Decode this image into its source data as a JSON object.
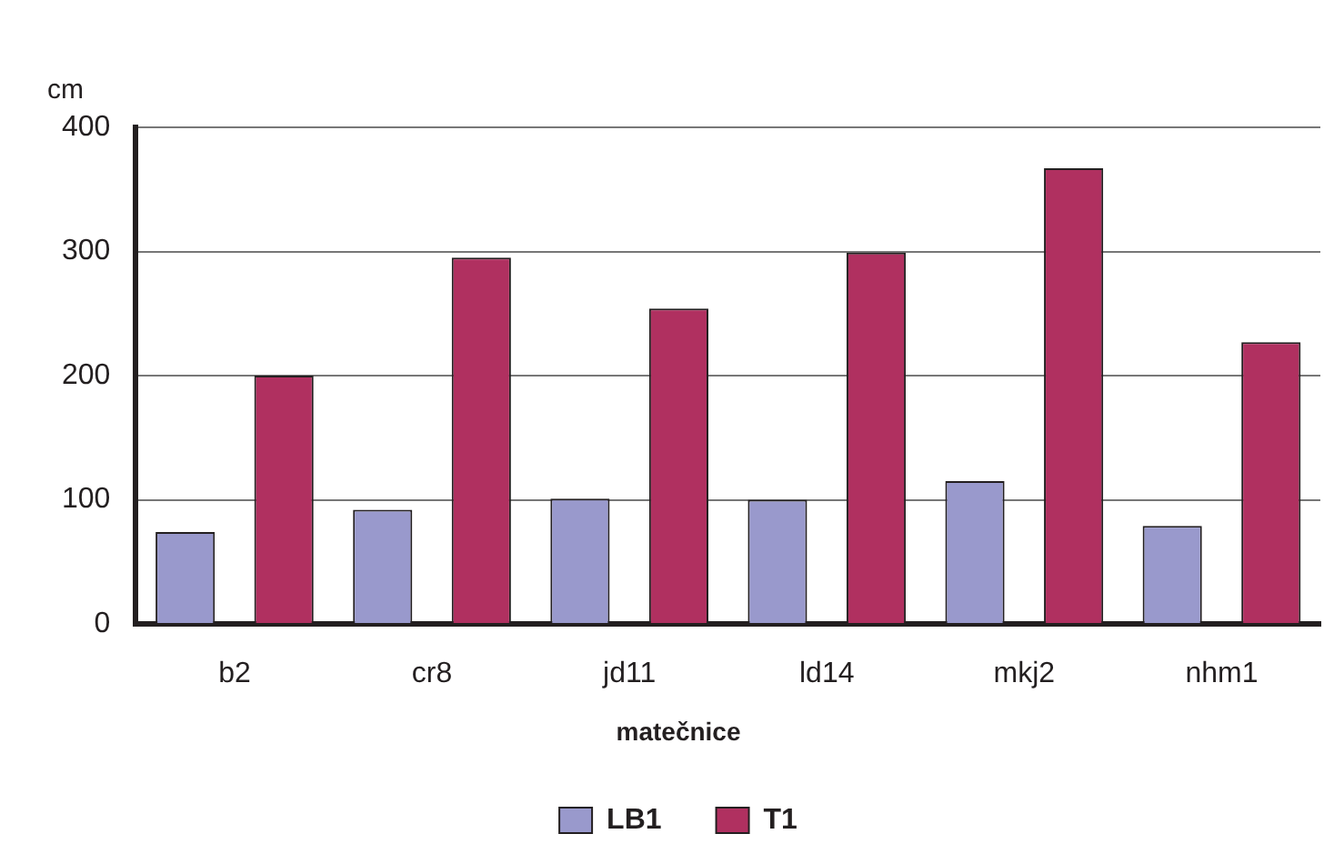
{
  "chart_data": {
    "type": "bar",
    "ylabel": "cm",
    "legend_title": "matečnice",
    "categories": [
      "b2",
      "cr8",
      "jd11",
      "ld14",
      "mkj2",
      "nhm1"
    ],
    "series": [
      {
        "name": "LB1",
        "color": "#9999cc",
        "values": [
          74,
          92,
          101,
          100,
          115,
          79
        ]
      },
      {
        "name": "T1",
        "color": "#b03060",
        "values": [
          200,
          295,
          254,
          299,
          367,
          227
        ]
      }
    ],
    "ylim": [
      0,
      400
    ],
    "yticks": [
      0,
      100,
      200,
      300,
      400
    ],
    "grid": "y",
    "legend": "bottom"
  }
}
